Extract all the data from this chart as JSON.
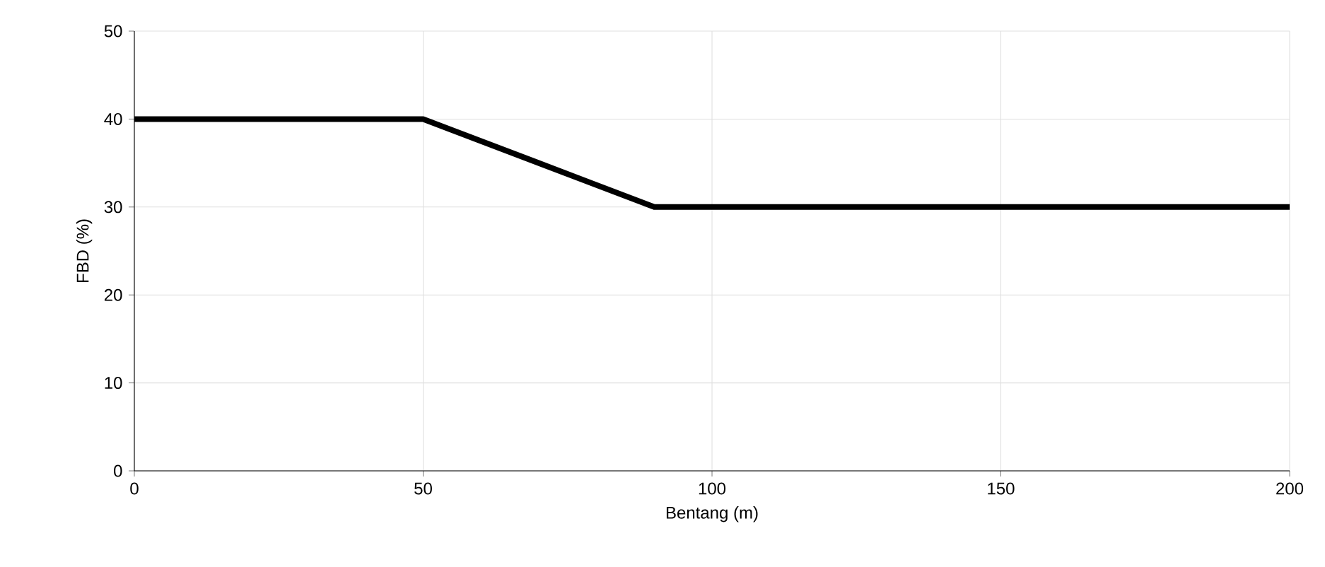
{
  "chart_data": {
    "type": "line",
    "xlabel": "Bentang (m)",
    "ylabel": "FBD (%)",
    "x": [
      0,
      50,
      90,
      200
    ],
    "series": [
      {
        "color": "#000000",
        "values": [
          40,
          40,
          30,
          30
        ]
      }
    ],
    "xlim": [
      0,
      200
    ],
    "ylim": [
      0,
      50
    ],
    "xticks": [
      0,
      50,
      100,
      150,
      200
    ],
    "yticks": [
      0,
      10,
      20,
      30,
      40,
      50
    ],
    "grid": true,
    "marker": "none",
    "line_style": "solid"
  }
}
